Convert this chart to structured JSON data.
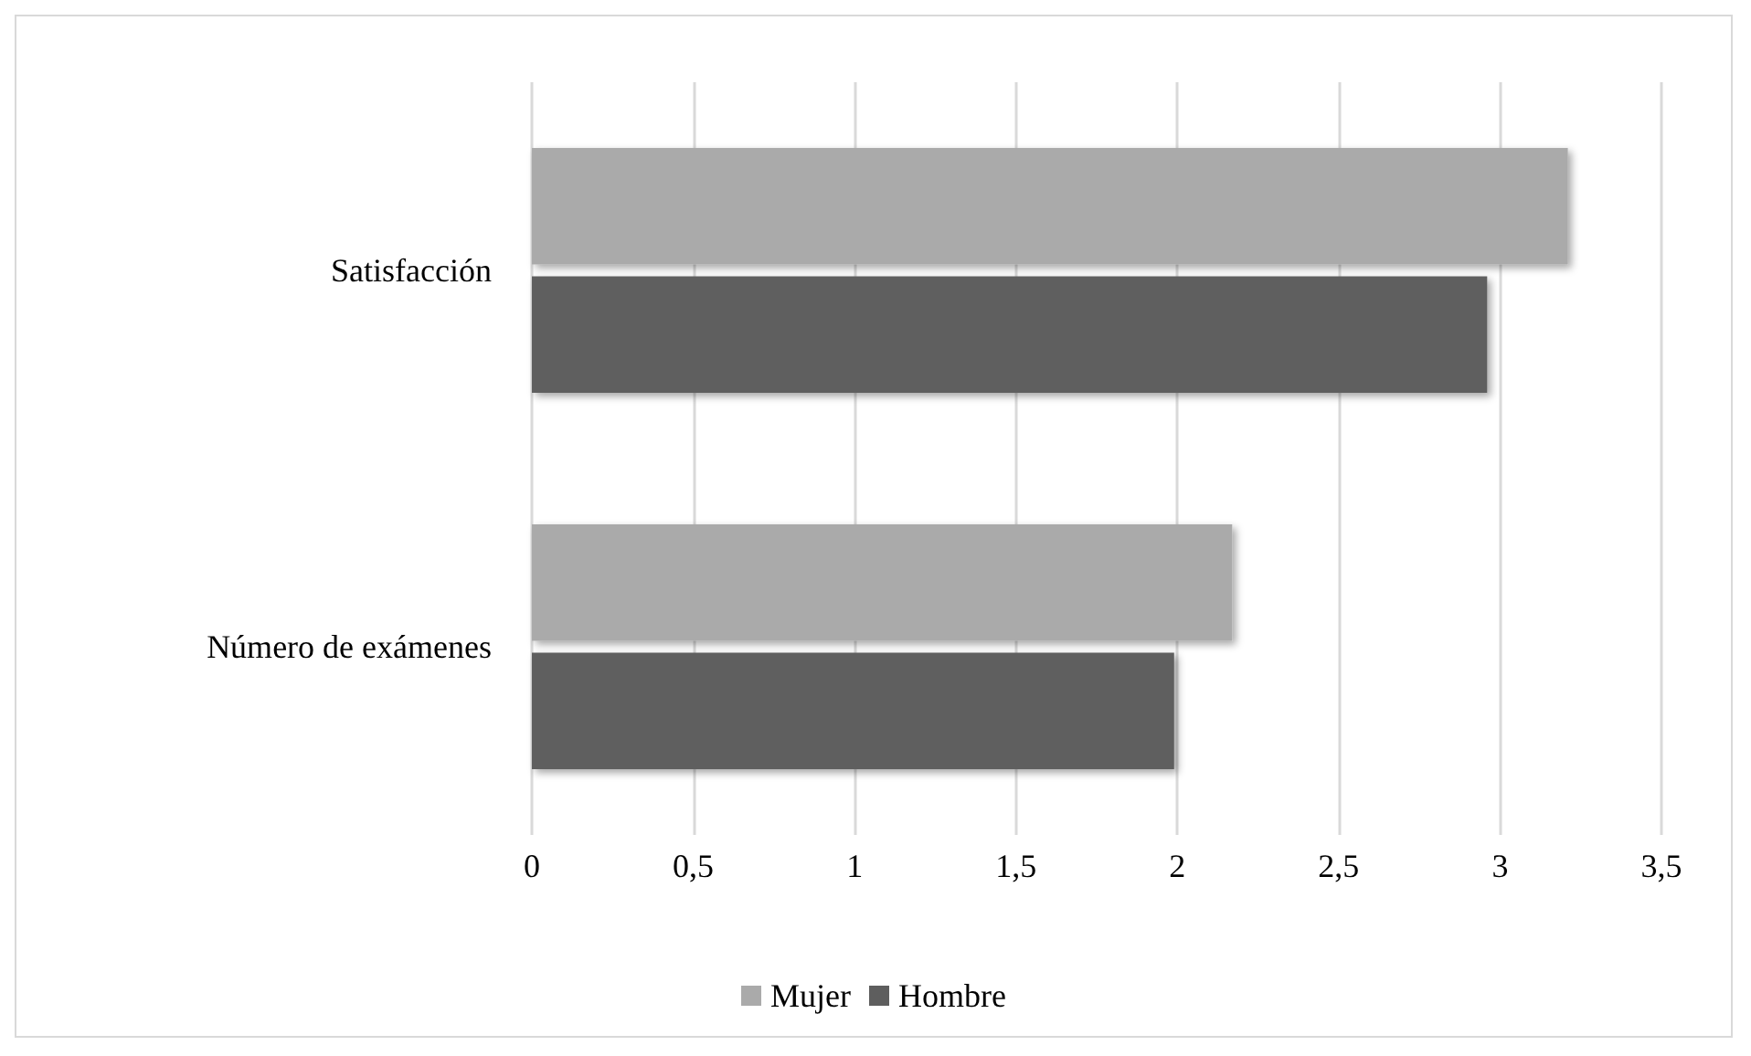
{
  "chart_data": {
    "type": "bar",
    "orientation": "horizontal",
    "categories": [
      "Satisfacción",
      "Número de exámenes"
    ],
    "series": [
      {
        "name": "Mujer",
        "color": "#aaaaaa",
        "values": [
          3.21,
          2.17
        ]
      },
      {
        "name": "Hombre",
        "color": "#5e5e5e",
        "values": [
          2.96,
          1.99
        ]
      }
    ],
    "xlim": [
      0,
      3.5
    ],
    "xticks": [
      0,
      {
        "value": 0.5,
        "label": "0,5"
      },
      1,
      {
        "value": 1.5,
        "label": "1,5"
      },
      2,
      {
        "value": 2.5,
        "label": "2,5"
      },
      3,
      {
        "value": 3.5,
        "label": "3,5"
      }
    ],
    "grid": "x",
    "legend": "bottom"
  }
}
